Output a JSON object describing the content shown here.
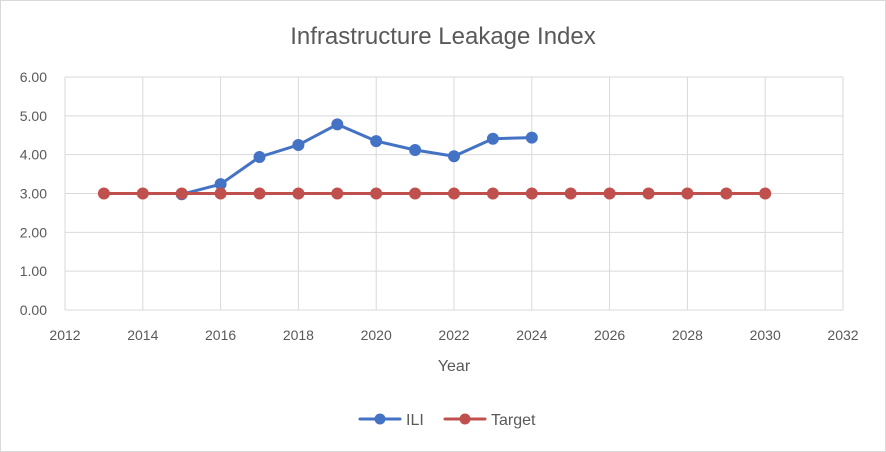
{
  "chart_data": {
    "type": "line",
    "title": "Infrastructure Leakage Index",
    "xlabel": "Year",
    "ylabel": "",
    "xlim": [
      2012,
      2032
    ],
    "ylim": [
      0,
      6
    ],
    "x_ticks": [
      "2012",
      "2014",
      "2016",
      "2018",
      "2020",
      "2022",
      "2024",
      "2026",
      "2028",
      "2030",
      "2032"
    ],
    "y_ticks": [
      "0.00",
      "1.00",
      "2.00",
      "3.00",
      "4.00",
      "5.00",
      "6.00"
    ],
    "grid": true,
    "legend_position": "bottom",
    "series": [
      {
        "name": "ILI",
        "color": "#4472c4",
        "x": [
          2015,
          2016,
          2017,
          2018,
          2019,
          2020,
          2021,
          2022,
          2023,
          2024
        ],
        "y": [
          2.98,
          3.24,
          3.94,
          4.25,
          4.78,
          4.35,
          4.12,
          3.96,
          4.41,
          4.44
        ]
      },
      {
        "name": "Target",
        "color": "#c0504d",
        "x": [
          2013,
          2014,
          2015,
          2016,
          2017,
          2018,
          2019,
          2020,
          2021,
          2022,
          2023,
          2024,
          2025,
          2026,
          2027,
          2028,
          2029,
          2030
        ],
        "y": [
          3,
          3,
          3,
          3,
          3,
          3,
          3,
          3,
          3,
          3,
          3,
          3,
          3,
          3,
          3,
          3,
          3,
          3
        ]
      }
    ]
  }
}
